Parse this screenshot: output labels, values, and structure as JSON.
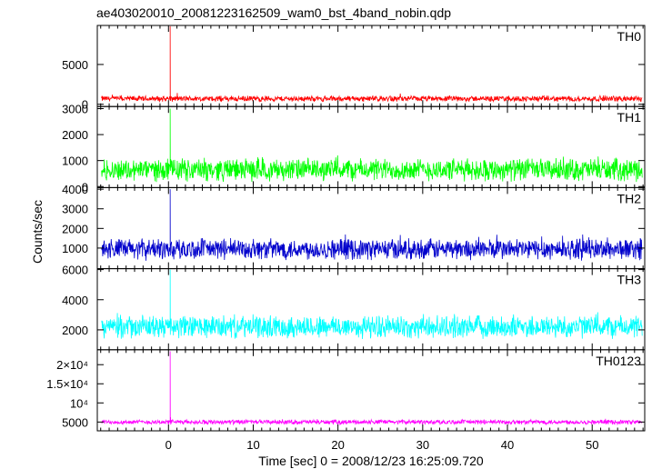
{
  "title": "ae403020010_20081223162509_wam0_bst_4band_nobin.qdp",
  "ylabel": "Counts/sec",
  "xlabel": "Time [sec] 0 = 2008/12/23 16:25:09.720",
  "chart_data": {
    "type": "line",
    "title": "ae403020010_20081223162509_wam0_bst_4band_nobin.qdp",
    "xlabel": "Time [sec] 0 = 2008/12/23 16:25:09.720",
    "ylabel": "Counts/sec",
    "xlim": [
      -8.4,
      56.2
    ],
    "x_ticks": [
      0,
      10,
      20,
      30,
      40,
      50
    ],
    "x_range": [
      -7.9,
      55.9
    ],
    "burst_time": 0.2,
    "series": [
      {
        "name": "TH0",
        "color": "#ff0000",
        "ylim": [
          -280,
          9900
        ],
        "y_ticks": [
          0,
          5000
        ],
        "y_tick_labels": [
          "0",
          "5000"
        ],
        "baseline": 700,
        "noise": 700,
        "peak": 9800
      },
      {
        "name": "TH1",
        "color": "#00ff00",
        "ylim": [
          -40,
          3080
        ],
        "y_ticks": [
          0,
          1000,
          2000,
          3000
        ],
        "y_tick_labels": [
          "0",
          "1000",
          "2000",
          "3000"
        ],
        "baseline": 650,
        "noise": 850,
        "peak": 3000
      },
      {
        "name": "TH2",
        "color": "#0000cc",
        "ylim": [
          -50,
          4080
        ],
        "y_ticks": [
          1000,
          2000,
          3000,
          4000
        ],
        "y_tick_labels": [
          "1000",
          "2000",
          "3000",
          "4000"
        ],
        "baseline": 950,
        "noise": 1050,
        "peak": 4000
      },
      {
        "name": "TH3",
        "color": "#00ffff",
        "ylim": [
          680,
          6060
        ],
        "y_ticks": [
          2000,
          4000,
          6000
        ],
        "y_tick_labels": [
          "2000",
          "4000",
          "6000"
        ],
        "baseline": 2200,
        "noise": 1500,
        "peak": 6000
      },
      {
        "name": "TH0123",
        "color": "#ff00ff",
        "ylim": [
          2700,
          23900
        ],
        "y_ticks": [
          5000,
          10000,
          15000,
          20000
        ],
        "y_tick_labels": [
          "5000",
          "10⁴",
          "1.5×10⁴",
          "2×10⁴"
        ],
        "baseline": 5000,
        "noise": 1200,
        "peak": 23500
      }
    ]
  }
}
